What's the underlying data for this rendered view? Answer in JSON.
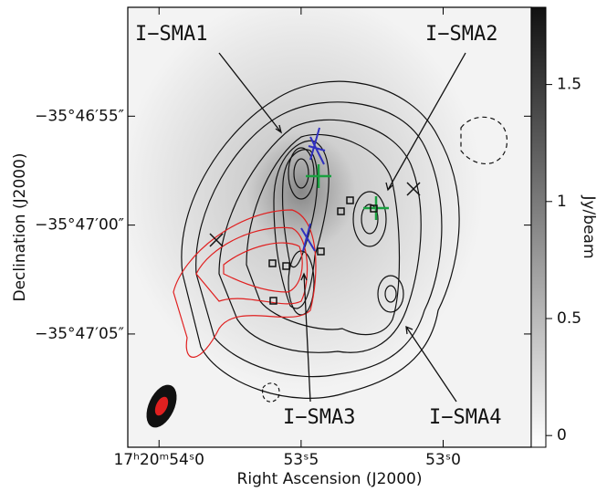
{
  "chart_data": {
    "type": "contour-map",
    "x_label": "Right Ascension (J2000)",
    "y_label": "Declination (J2000)",
    "colorbar_label": "Jy/beam",
    "xlim": [
      54.11,
      52.69
    ],
    "xticks": [
      {
        "value": 54.0,
        "label": "17ʰ20ᵐ54ˢ0"
      },
      {
        "value": 53.5,
        "label": "53ˢ5"
      },
      {
        "value": 53.0,
        "label": "53ˢ0"
      }
    ],
    "ylim": [
      70.2,
      50.0
    ],
    "yticks": [
      {
        "value": 55,
        "label": "−35°46′55″"
      },
      {
        "value": 60,
        "label": "−35°47′00″"
      },
      {
        "value": 65,
        "label": "−35°47′05″"
      }
    ],
    "zlim": [
      -0.05,
      1.83
    ],
    "zticks": [
      0,
      0.5,
      1,
      1.5
    ],
    "annotations": [
      "I−SMA1",
      "I−SMA2",
      "I−SMA3",
      "I−SMA4"
    ]
  }
}
